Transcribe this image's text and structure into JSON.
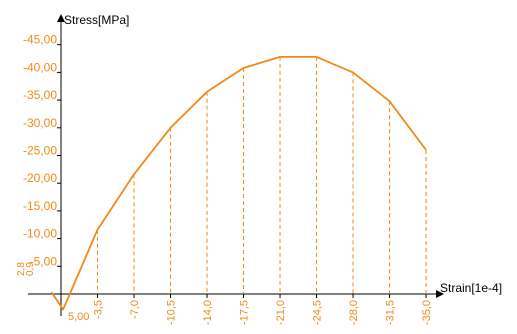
{
  "chart_data": {
    "type": "line",
    "xlabel": "Strain[1e-4]",
    "ylabel": "Stress[MPa]",
    "colors": {
      "series": "#F08A1A",
      "axis": "#000000",
      "label": "#F08A1A"
    },
    "xlim": [
      0.9,
      -35.0
    ],
    "ylim": [
      5.0,
      -45.0
    ],
    "x_ticks": [
      "-3,5",
      "-7,0",
      "-10,5",
      "-14,0",
      "-17,5",
      "-21,0",
      "-24,5",
      "-28,0",
      "-31,5",
      "-35,0"
    ],
    "x_ticks_extra": [
      "0,9"
    ],
    "y_ticks": [
      "-45,00",
      "-40,00",
      "-35,00",
      "-30,00",
      "-25,00",
      "-20,00",
      "-15,00",
      "-10,00",
      "-5,00"
    ],
    "y_ticks_extra": [
      "2,8",
      "5,00"
    ],
    "series": [
      {
        "x": [
          0.9,
          -0.2,
          -3.5,
          -7.0,
          -10.5,
          -14.0,
          -17.5,
          -21.0,
          -24.5,
          -28.0,
          -31.5,
          -35.0
        ],
        "y": [
          -0.3,
          2.8,
          -11.6,
          -21.6,
          -30.0,
          -36.5,
          -40.8,
          -42.8,
          -42.8,
          -40.0,
          -34.8,
          -26.0
        ]
      }
    ],
    "guides": "vertical dashed lines from each interior data point down to the x-axis"
  }
}
